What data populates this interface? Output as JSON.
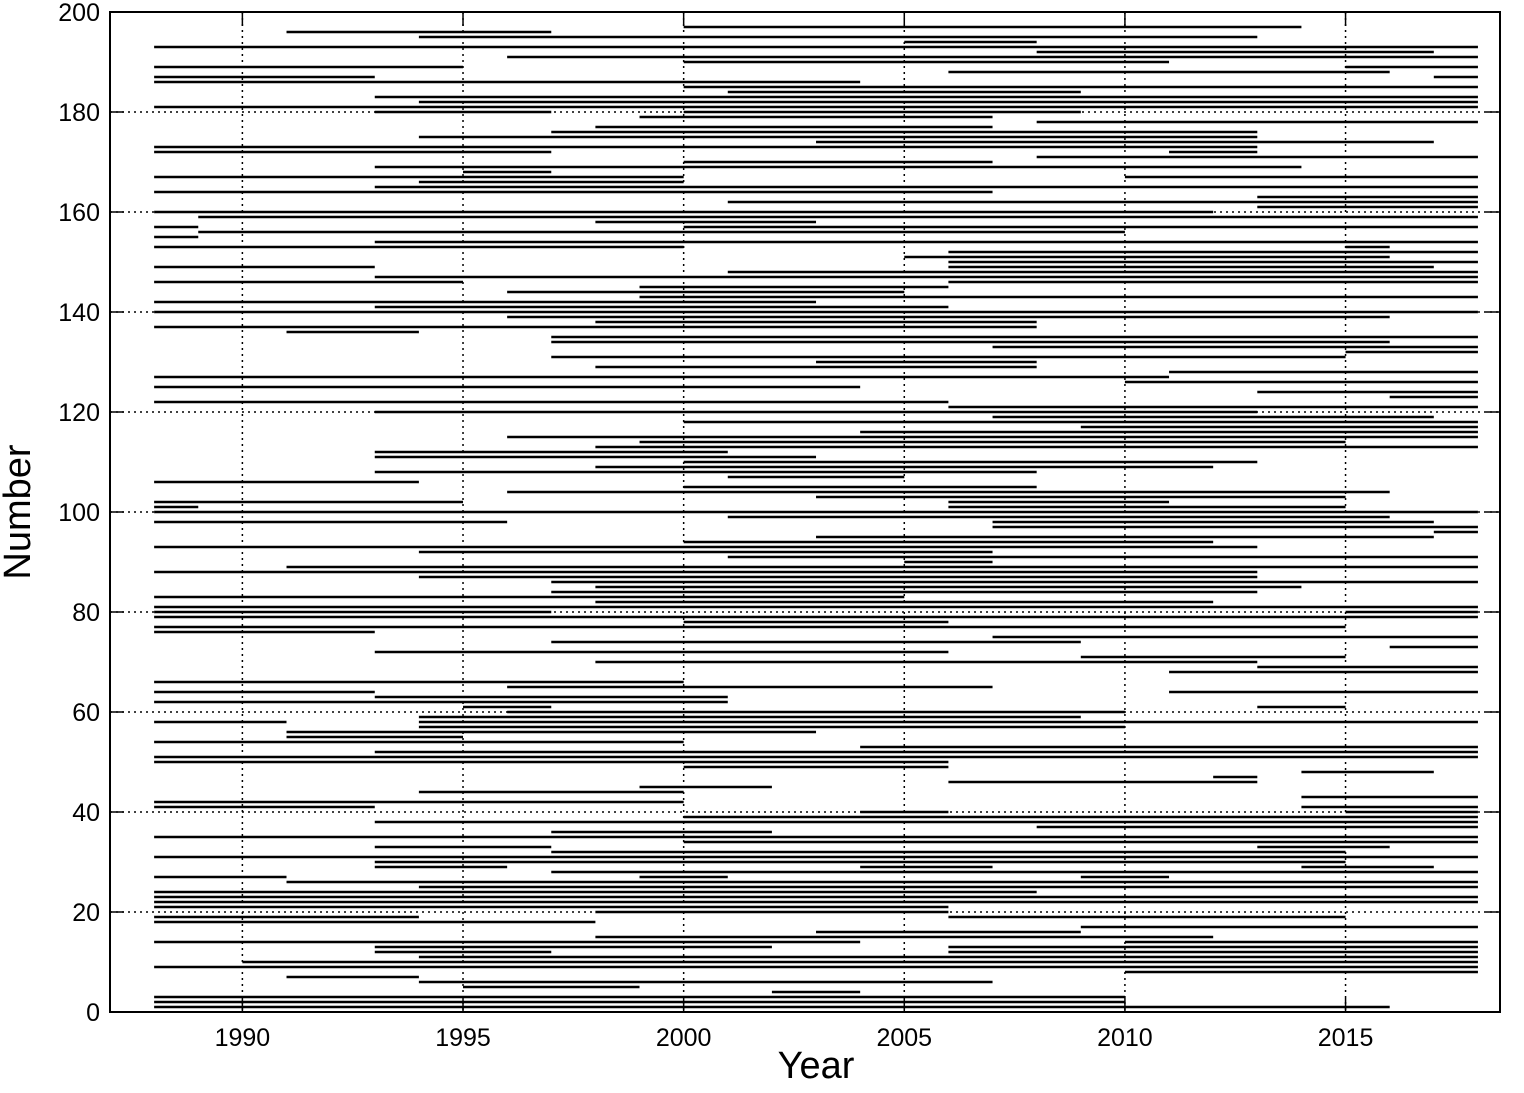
{
  "chart_data": {
    "type": "segments",
    "x_label": "Year",
    "y_label": "Number",
    "xlim": [
      1987,
      2018.5
    ],
    "ylim": [
      0,
      200
    ],
    "xticks": [
      1990,
      1995,
      2000,
      2005,
      2010,
      2015
    ],
    "yticks": [
      0,
      20,
      40,
      60,
      80,
      100,
      120,
      140,
      160,
      180,
      200
    ],
    "grid": true,
    "color": "#000000",
    "segments": [
      [
        1,
        1988,
        2016
      ],
      [
        2,
        1988,
        2010
      ],
      [
        3,
        1988,
        2010
      ],
      [
        4,
        2002,
        2004
      ],
      [
        5,
        1995,
        1999
      ],
      [
        6,
        1994,
        2007
      ],
      [
        7,
        1991,
        1994
      ],
      [
        8,
        2010,
        2018
      ],
      [
        9,
        1988,
        2018
      ],
      [
        10,
        1990,
        2018
      ],
      [
        11,
        1994,
        2018
      ],
      [
        12,
        1993,
        1997
      ],
      [
        12,
        2006,
        2018
      ],
      [
        13,
        1993,
        2002
      ],
      [
        13,
        2006,
        2018
      ],
      [
        14,
        1988,
        2004
      ],
      [
        14,
        2010,
        2018
      ],
      [
        15,
        1998,
        2012
      ],
      [
        16,
        2003,
        2009
      ],
      [
        17,
        2009,
        2018
      ],
      [
        18,
        1988,
        1998
      ],
      [
        19,
        1988,
        1994
      ],
      [
        19,
        2006,
        2015
      ],
      [
        20,
        1998,
        2006
      ],
      [
        21,
        1988,
        2006
      ],
      [
        22,
        1988,
        2018
      ],
      [
        23,
        1988,
        2018
      ],
      [
        24,
        1988,
        2008
      ],
      [
        25,
        1994,
        2018
      ],
      [
        26,
        1991,
        2018
      ],
      [
        27,
        1988,
        1991
      ],
      [
        27,
        1999,
        2001
      ],
      [
        27,
        2009,
        2011
      ],
      [
        28,
        1997,
        2018
      ],
      [
        29,
        1993,
        1996
      ],
      [
        29,
        2004,
        2007
      ],
      [
        29,
        2014,
        2017
      ],
      [
        30,
        1993,
        2015
      ],
      [
        31,
        1988,
        2018
      ],
      [
        32,
        1997,
        2015
      ],
      [
        33,
        1993,
        1997
      ],
      [
        33,
        2013,
        2016
      ],
      [
        34,
        2000,
        2018
      ],
      [
        35,
        1988,
        2018
      ],
      [
        36,
        1997,
        2002
      ],
      [
        37,
        2008,
        2018
      ],
      [
        38,
        1993,
        2018
      ],
      [
        39,
        2000,
        2018
      ],
      [
        40,
        2004,
        2006
      ],
      [
        40,
        2015,
        2018
      ],
      [
        41,
        1988,
        1993
      ],
      [
        41,
        2014,
        2018
      ],
      [
        42,
        1988,
        2000
      ],
      [
        43,
        2014,
        2018
      ],
      [
        44,
        1994,
        2000
      ],
      [
        45,
        1999,
        2002
      ],
      [
        46,
        2006,
        2013
      ],
      [
        47,
        2012,
        2013
      ],
      [
        48,
        2014,
        2017
      ],
      [
        49,
        2000,
        2006
      ],
      [
        50,
        1988,
        2006
      ],
      [
        51,
        1988,
        2018
      ],
      [
        52,
        1993,
        2018
      ],
      [
        53,
        2004,
        2018
      ],
      [
        54,
        1988,
        2000
      ],
      [
        55,
        1991,
        1995
      ],
      [
        56,
        1991,
        2003
      ],
      [
        57,
        1994,
        2010
      ],
      [
        58,
        1988,
        1991
      ],
      [
        58,
        1994,
        2018
      ],
      [
        59,
        1994,
        2009
      ],
      [
        60,
        1996,
        2010
      ],
      [
        61,
        1995,
        1997
      ],
      [
        61,
        2013,
        2015
      ],
      [
        62,
        1988,
        2001
      ],
      [
        63,
        1993,
        2001
      ],
      [
        64,
        1988,
        1993
      ],
      [
        64,
        2011,
        2018
      ],
      [
        65,
        1996,
        2007
      ],
      [
        66,
        1988,
        2000
      ],
      [
        68,
        2011,
        2018
      ],
      [
        69,
        2013,
        2018
      ],
      [
        70,
        1998,
        2013
      ],
      [
        71,
        2009,
        2015
      ],
      [
        72,
        1993,
        2006
      ],
      [
        73,
        2016,
        2018
      ],
      [
        74,
        1997,
        2009
      ],
      [
        75,
        2007,
        2018
      ],
      [
        76,
        1988,
        1993
      ],
      [
        77,
        1988,
        2015
      ],
      [
        78,
        2000,
        2006
      ],
      [
        79,
        1988,
        2018
      ],
      [
        80,
        1988,
        1997
      ],
      [
        80,
        2015,
        2018
      ],
      [
        81,
        1988,
        2018
      ],
      [
        82,
        1998,
        2012
      ],
      [
        83,
        1988,
        2005
      ],
      [
        84,
        1997,
        2013
      ],
      [
        85,
        1998,
        2014
      ],
      [
        86,
        1997,
        2018
      ],
      [
        87,
        1994,
        2013
      ],
      [
        88,
        1988,
        2013
      ],
      [
        89,
        1991,
        2018
      ],
      [
        90,
        2005,
        2007
      ],
      [
        91,
        2001,
        2018
      ],
      [
        92,
        1994,
        2007
      ],
      [
        93,
        1988,
        2013
      ],
      [
        94,
        2000,
        2012
      ],
      [
        95,
        2003,
        2017
      ],
      [
        96,
        2017,
        2018
      ],
      [
        97,
        2007,
        2018
      ],
      [
        98,
        1988,
        1996
      ],
      [
        98,
        2007,
        2017
      ],
      [
        99,
        2001,
        2016
      ],
      [
        100,
        1988,
        2018
      ],
      [
        101,
        1988,
        1989
      ],
      [
        101,
        2006,
        2015
      ],
      [
        102,
        1988,
        1995
      ],
      [
        102,
        2006,
        2011
      ],
      [
        103,
        2003,
        2015
      ],
      [
        104,
        1996,
        2016
      ],
      [
        105,
        2000,
        2008
      ],
      [
        106,
        1988,
        1994
      ],
      [
        107,
        2001,
        2005
      ],
      [
        108,
        1993,
        2008
      ],
      [
        109,
        1998,
        2012
      ],
      [
        110,
        2000,
        2013
      ],
      [
        111,
        1993,
        2003
      ],
      [
        112,
        1993,
        2001
      ],
      [
        113,
        1998,
        2018
      ],
      [
        114,
        1999,
        2015
      ],
      [
        115,
        1996,
        2018
      ],
      [
        116,
        2004,
        2018
      ],
      [
        117,
        2009,
        2018
      ],
      [
        118,
        2000,
        2018
      ],
      [
        119,
        2007,
        2017
      ],
      [
        120,
        1993,
        2013
      ],
      [
        121,
        2006,
        2018
      ],
      [
        122,
        1988,
        2006
      ],
      [
        123,
        2016,
        2018
      ],
      [
        124,
        2013,
        2018
      ],
      [
        125,
        1988,
        2004
      ],
      [
        126,
        2010,
        2018
      ],
      [
        127,
        1988,
        2011
      ],
      [
        128,
        2011,
        2018
      ],
      [
        129,
        1998,
        2008
      ],
      [
        130,
        2003,
        2008
      ],
      [
        131,
        1997,
        2015
      ],
      [
        132,
        2015,
        2018
      ],
      [
        133,
        2007,
        2018
      ],
      [
        134,
        1997,
        2016
      ],
      [
        135,
        1997,
        2018
      ],
      [
        136,
        1991,
        1994
      ],
      [
        137,
        1988,
        2008
      ],
      [
        138,
        1998,
        2008
      ],
      [
        139,
        1996,
        2016
      ],
      [
        140,
        1988,
        2018
      ],
      [
        141,
        1993,
        2006
      ],
      [
        142,
        1988,
        2003
      ],
      [
        143,
        1999,
        2018
      ],
      [
        144,
        1996,
        2005
      ],
      [
        145,
        1999,
        2006
      ],
      [
        146,
        1988,
        1995
      ],
      [
        146,
        2006,
        2018
      ],
      [
        147,
        1993,
        2018
      ],
      [
        148,
        2001,
        2018
      ],
      [
        149,
        1988,
        1993
      ],
      [
        149,
        2006,
        2017
      ],
      [
        150,
        2006,
        2018
      ],
      [
        151,
        2005,
        2016
      ],
      [
        152,
        2006,
        2018
      ],
      [
        153,
        1988,
        2000
      ],
      [
        153,
        2015,
        2016
      ],
      [
        154,
        1993,
        2018
      ],
      [
        155,
        1988,
        1989
      ],
      [
        156,
        1989,
        2010
      ],
      [
        157,
        1988,
        1989
      ],
      [
        157,
        2000,
        2018
      ],
      [
        158,
        1998,
        2003
      ],
      [
        159,
        1989,
        2018
      ],
      [
        160,
        1988,
        2012
      ],
      [
        161,
        2013,
        2018
      ],
      [
        162,
        2001,
        2018
      ],
      [
        163,
        2013,
        2018
      ],
      [
        164,
        1988,
        2007
      ],
      [
        165,
        1993,
        2018
      ],
      [
        166,
        1994,
        2000
      ],
      [
        167,
        1988,
        2000
      ],
      [
        167,
        2010,
        2018
      ],
      [
        168,
        1995,
        1997
      ],
      [
        169,
        1993,
        2014
      ],
      [
        170,
        2000,
        2007
      ],
      [
        171,
        2008,
        2018
      ],
      [
        172,
        1988,
        1997
      ],
      [
        172,
        2011,
        2013
      ],
      [
        173,
        1988,
        2013
      ],
      [
        174,
        2003,
        2017
      ],
      [
        175,
        1994,
        2013
      ],
      [
        176,
        1997,
        2013
      ],
      [
        177,
        1998,
        2007
      ],
      [
        178,
        2008,
        2018
      ],
      [
        179,
        1999,
        2007
      ],
      [
        180,
        1993,
        1997
      ],
      [
        180,
        2000,
        2009
      ],
      [
        181,
        1988,
        2018
      ],
      [
        182,
        1994,
        2018
      ],
      [
        183,
        1993,
        2018
      ],
      [
        184,
        2001,
        2009
      ],
      [
        185,
        2000,
        2018
      ],
      [
        186,
        1988,
        2004
      ],
      [
        187,
        1988,
        1993
      ],
      [
        187,
        2017,
        2018
      ],
      [
        188,
        2006,
        2016
      ],
      [
        189,
        1988,
        1995
      ],
      [
        189,
        2015,
        2018
      ],
      [
        190,
        2000,
        2011
      ],
      [
        191,
        1996,
        2018
      ],
      [
        192,
        2008,
        2017
      ],
      [
        193,
        1988,
        2018
      ],
      [
        194,
        2005,
        2008
      ],
      [
        195,
        1994,
        2013
      ],
      [
        196,
        1991,
        1997
      ],
      [
        197,
        2000,
        2014
      ]
    ]
  }
}
